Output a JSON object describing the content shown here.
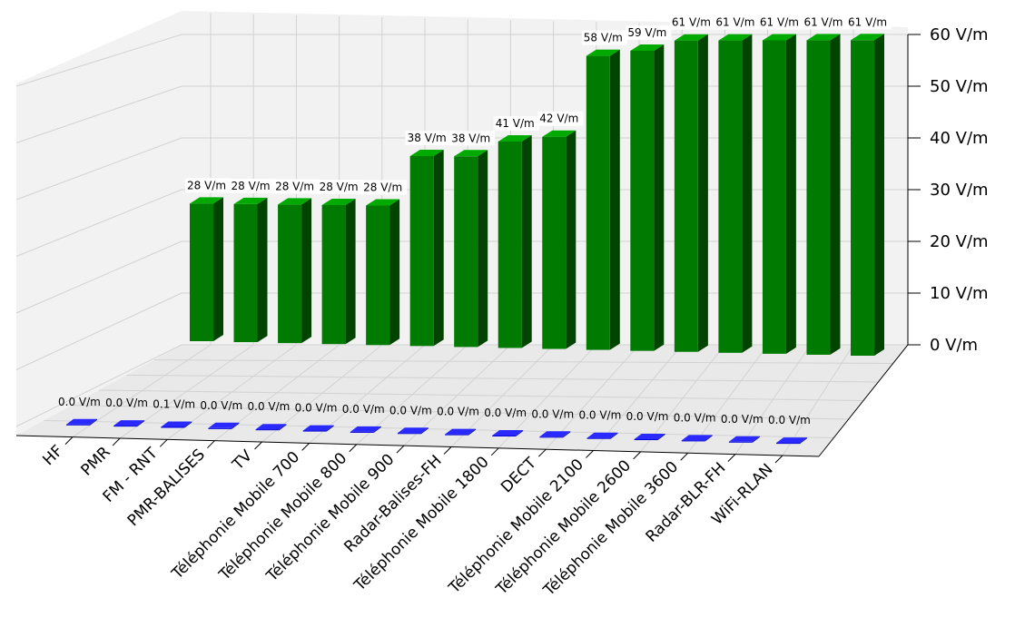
{
  "chart_data": {
    "type": "bar",
    "categories": [
      "HF",
      "PMR",
      "FM - RNT",
      "PMR-BALISES",
      "TV",
      "Téléphonie Mobile 700",
      "Téléphonie Mobile 800",
      "Téléphonie Mobile 900",
      "Radar-Balises-FH",
      "Téléphonie Mobile 1800",
      "DECT",
      "Téléphonie Mobile 2100",
      "Téléphonie Mobile 2600",
      "Téléphonie Mobile 3600",
      "Radar-BLR-FH",
      "WiFi-RLAN"
    ],
    "series": [
      {
        "color": "#0000d6",
        "values": [
          0.0,
          0.0,
          0.1,
          0.0,
          0.0,
          0.0,
          0.0,
          0.0,
          0.0,
          0.0,
          0.0,
          0.0,
          0.0,
          0.0,
          0.0,
          0.0
        ],
        "labels": [
          "0.0 V/m",
          "0.0 V/m",
          "0.1 V/m",
          "0.0 V/m",
          "0.0 V/m",
          "0.0 V/m",
          "0.0 V/m",
          "0.0 V/m",
          "0.0 V/m",
          "0.0 V/m",
          "0.0 V/m",
          "0.0 V/m",
          "0.0 V/m",
          "0.0 V/m",
          "0.0 V/m",
          "0.0 V/m"
        ]
      },
      {
        "color": "#007a00",
        "values": [
          28,
          28,
          28,
          28,
          28,
          38,
          38,
          41,
          42,
          58,
          59,
          61,
          61,
          61,
          61,
          61
        ],
        "labels": [
          "28 V/m",
          "28 V/m",
          "28 V/m",
          "28 V/m",
          "28 V/m",
          "38 V/m",
          "38 V/m",
          "41 V/m",
          "42 V/m",
          "58 V/m",
          "59 V/m",
          "61 V/m",
          "61 V/m",
          "61 V/m",
          "61 V/m",
          "61 V/m"
        ]
      }
    ],
    "z_ticks": [
      "0 V/m",
      "10 V/m",
      "20 V/m",
      "30 V/m",
      "40 V/m",
      "50 V/m",
      "60 V/m"
    ],
    "zlim": [
      0,
      60
    ],
    "grid": true,
    "title": "",
    "xlabel": "",
    "ylabel": ""
  }
}
